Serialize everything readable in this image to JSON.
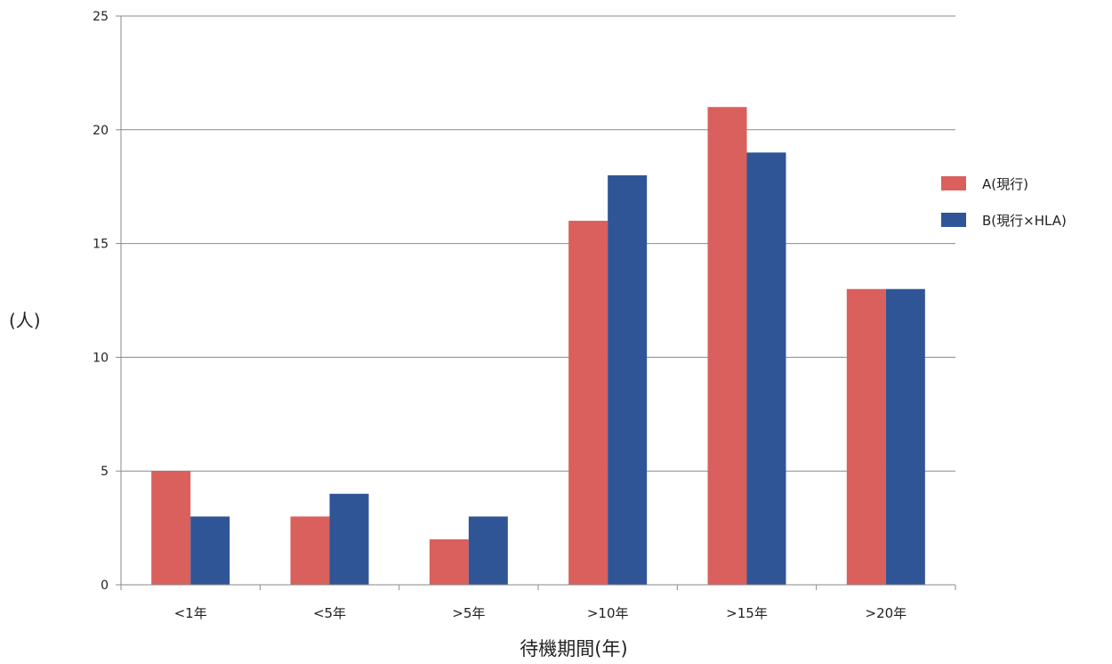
{
  "chart_data": {
    "type": "bar",
    "categories": [
      "<1年",
      "<5年",
      ">5年",
      ">10年",
      ">15年",
      ">20年"
    ],
    "series": [
      {
        "name": "A(現行)",
        "values": [
          5,
          3,
          2,
          16,
          21,
          13
        ],
        "color": "#d9605c"
      },
      {
        "name": "B(現行×HLA)",
        "values": [
          3,
          4,
          3,
          18,
          19,
          13
        ],
        "color": "#2f5597"
      }
    ],
    "xlabel": "待機期間(年)",
    "ylabel": "(人)",
    "ylim": [
      0,
      25
    ],
    "yticks": [
      0,
      5,
      10,
      15,
      20,
      25
    ],
    "grid": true,
    "legend": "right"
  }
}
